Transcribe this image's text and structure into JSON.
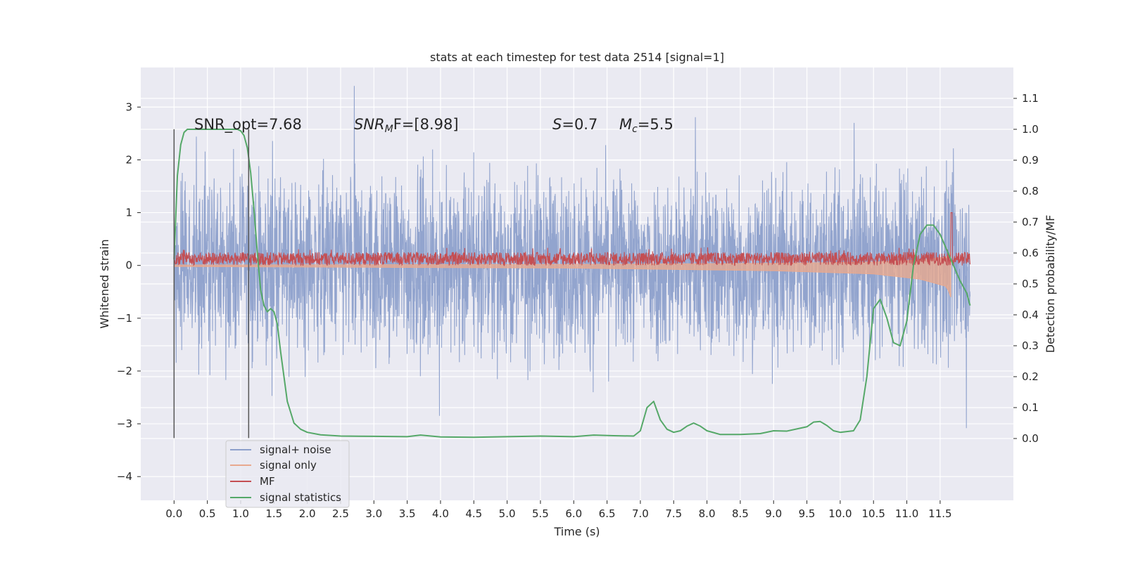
{
  "chart_data": {
    "type": "line",
    "title": "stats at each timestep for test data 2514 [signal=1]",
    "xlabel": "Time (s)",
    "ylabel": "Whitened strain",
    "y2label": "Detection probability/MF",
    "xlim": [
      -0.5,
      12.6
    ],
    "ylim": [
      -4.45,
      3.75
    ],
    "y2lim": [
      -0.2,
      1.2
    ],
    "x_ticks": [
      "0.0",
      "0.5",
      "1.0",
      "1.5",
      "2.0",
      "2.5",
      "3.0",
      "3.5",
      "4.0",
      "4.5",
      "5.0",
      "5.5",
      "6.0",
      "6.5",
      "7.0",
      "7.5",
      "8.0",
      "8.5",
      "9.0",
      "9.5",
      "10.0",
      "10.5",
      "11.0",
      "11.5"
    ],
    "x_tick_values": [
      0.0,
      0.5,
      1.0,
      1.5,
      2.0,
      2.5,
      3.0,
      3.5,
      4.0,
      4.5,
      5.0,
      5.5,
      6.0,
      6.5,
      7.0,
      7.5,
      8.0,
      8.5,
      9.0,
      9.5,
      10.0,
      10.5,
      11.0,
      11.5
    ],
    "y_ticks": [
      "3",
      "2",
      "1",
      "0",
      "−1",
      "−2",
      "−3",
      "−4"
    ],
    "y_tick_values": [
      3,
      2,
      1,
      0,
      -1,
      -2,
      -3,
      -4
    ],
    "y2_ticks": [
      "1.1",
      "1.0",
      "0.9",
      "0.8",
      "0.7",
      "0.6",
      "0.5",
      "0.4",
      "0.3",
      "0.2",
      "0.1",
      "0.0"
    ],
    "y2_tick_values": [
      1.1,
      1.0,
      0.9,
      0.8,
      0.7,
      0.6,
      0.5,
      0.4,
      0.3,
      0.2,
      0.1,
      0.0
    ],
    "grid": true,
    "legend_position": "lower-left",
    "series": [
      {
        "name": "signal+ noise",
        "color": "#8da0cb",
        "axis": "left",
        "style": "noise band"
      },
      {
        "name": "signal only",
        "color": "#e8a98f",
        "axis": "left",
        "style": "chirp envelope",
        "envelope_x": [
          0.0,
          6.0,
          9.0,
          10.5,
          11.2,
          11.6,
          11.66
        ],
        "envelope_amp": [
          0.02,
          0.05,
          0.1,
          0.16,
          0.26,
          0.4,
          0.6
        ]
      },
      {
        "name": "MF",
        "color": "#c44e52",
        "axis": "left",
        "style": "noisy band",
        "band": [
          0.0,
          0.25
        ],
        "peak_x": 11.67,
        "peak_y": 1.0
      },
      {
        "name": "signal statistics",
        "color": "#55a868",
        "axis": "right",
        "x": [
          0.0,
          0.05,
          0.1,
          0.15,
          0.2,
          0.3,
          0.5,
          0.8,
          0.95,
          1.0,
          1.05,
          1.1,
          1.15,
          1.2,
          1.25,
          1.3,
          1.35,
          1.4,
          1.45,
          1.5,
          1.55,
          1.6,
          1.7,
          1.8,
          1.9,
          2.0,
          2.2,
          2.5,
          3.0,
          3.5,
          3.7,
          4.0,
          4.5,
          5.0,
          5.5,
          6.0,
          6.3,
          6.6,
          6.9,
          7.0,
          7.1,
          7.2,
          7.3,
          7.4,
          7.5,
          7.6,
          7.7,
          7.8,
          7.9,
          8.0,
          8.2,
          8.5,
          8.8,
          9.0,
          9.2,
          9.5,
          9.6,
          9.7,
          9.8,
          9.9,
          10.0,
          10.2,
          10.3,
          10.4,
          10.5,
          10.6,
          10.7,
          10.8,
          10.9,
          11.0,
          11.1,
          11.2,
          11.3,
          11.4,
          11.5,
          11.6,
          11.7,
          11.8,
          11.9,
          11.95
        ],
        "y": [
          0.58,
          0.85,
          0.95,
          0.99,
          1.0,
          1.0,
          1.0,
          1.0,
          1.0,
          0.995,
          0.98,
          0.94,
          0.86,
          0.74,
          0.6,
          0.48,
          0.43,
          0.41,
          0.42,
          0.41,
          0.37,
          0.28,
          0.12,
          0.05,
          0.03,
          0.02,
          0.012,
          0.008,
          0.007,
          0.006,
          0.011,
          0.005,
          0.004,
          0.006,
          0.008,
          0.006,
          0.011,
          0.009,
          0.008,
          0.025,
          0.1,
          0.12,
          0.06,
          0.03,
          0.02,
          0.025,
          0.04,
          0.05,
          0.04,
          0.025,
          0.013,
          0.013,
          0.016,
          0.025,
          0.024,
          0.038,
          0.053,
          0.055,
          0.042,
          0.025,
          0.02,
          0.025,
          0.06,
          0.2,
          0.42,
          0.45,
          0.39,
          0.31,
          0.3,
          0.38,
          0.56,
          0.66,
          0.69,
          0.69,
          0.66,
          0.61,
          0.56,
          0.51,
          0.47,
          0.43
        ]
      }
    ],
    "annotations": [
      {
        "text": "SNR_opt=7.68"
      },
      {
        "text_main": "SNR",
        "text_sub": "M",
        "text_after": "F=[8.98]"
      },
      {
        "text_main": "S",
        "text_after": "=0.7"
      },
      {
        "text_main": "M",
        "text_sub": "c",
        "text_after": "=5.5"
      }
    ],
    "window_marker_x": [
      0.0,
      1.12
    ],
    "window_marker_y": [
      -3.27,
      2.58
    ]
  }
}
